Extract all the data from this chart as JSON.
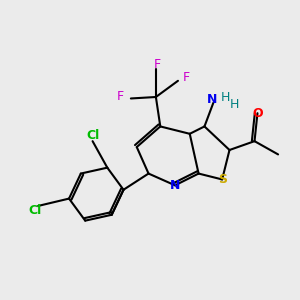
{
  "bg_color": "#ebebeb",
  "atom_colors": {
    "C": "#000000",
    "N": "#0000ee",
    "S": "#ccaa00",
    "O": "#ff0000",
    "F": "#cc00cc",
    "Cl": "#00bb00",
    "NH2_N": "#0000ee",
    "NH2_H": "#008080"
  },
  "bond_color": "#000000",
  "lw": 1.5
}
